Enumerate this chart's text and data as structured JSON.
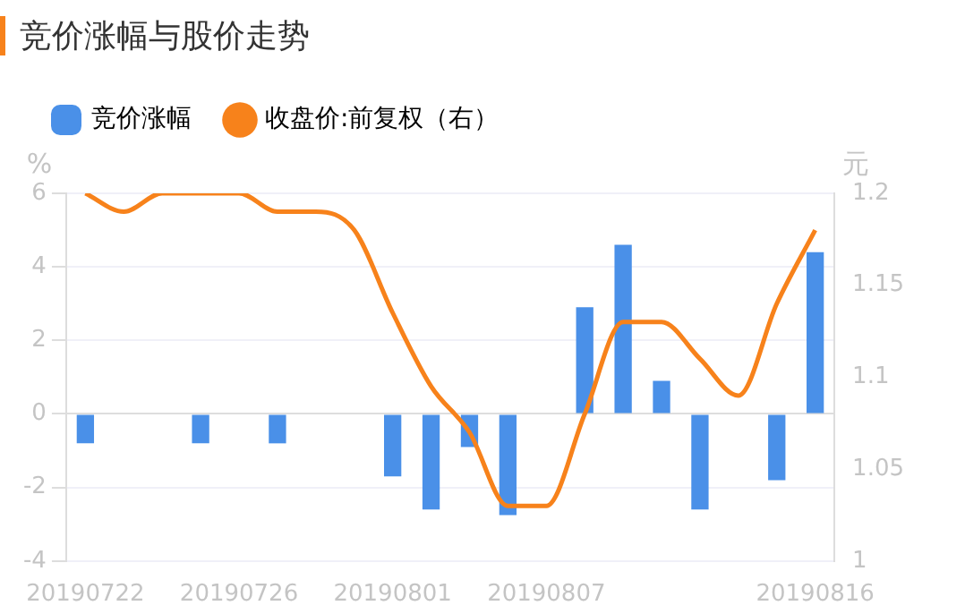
{
  "chart_data": {
    "type": "bar",
    "title": "竞价涨幅与股价走势",
    "ylabel": "%",
    "y2label": "元",
    "categories": [
      "20190722",
      null,
      null,
      null,
      "20190726",
      null,
      null,
      null,
      "20190801",
      null,
      null,
      null,
      "20190807",
      null,
      null,
      null,
      null,
      null,
      null,
      "20190816"
    ],
    "series": [
      {
        "name": "竞价涨幅",
        "color": "#4a90e8",
        "values": [
          -0.8,
          0,
          0,
          -0.8,
          0,
          -0.8,
          0,
          0,
          -1.7,
          -2.6,
          -0.9,
          -2.75,
          0,
          2.9,
          4.6,
          0.9,
          -2.6,
          0,
          -1.8,
          4.4
        ]
      },
      {
        "name": "收盘价:前复权（右）",
        "type": "line",
        "axis": "y2",
        "color": "#f7821b",
        "marker": "none",
        "values": [
          1.2,
          1.19,
          1.2,
          1.2,
          1.2,
          1.19,
          1.19,
          1.18,
          1.135,
          1.095,
          1.07,
          1.03,
          1.03,
          1.08,
          1.13,
          1.13,
          1.11,
          1.09,
          1.14,
          1.18
        ]
      }
    ],
    "ylim": [
      -4,
      6
    ],
    "yticks": [
      -4,
      -2,
      0,
      2,
      4,
      6
    ],
    "y2lim": [
      1,
      1.2
    ],
    "y2ticks": [
      1,
      1.05,
      1.1,
      1.15,
      1.2
    ],
    "grid": "y",
    "legend": "top left"
  }
}
